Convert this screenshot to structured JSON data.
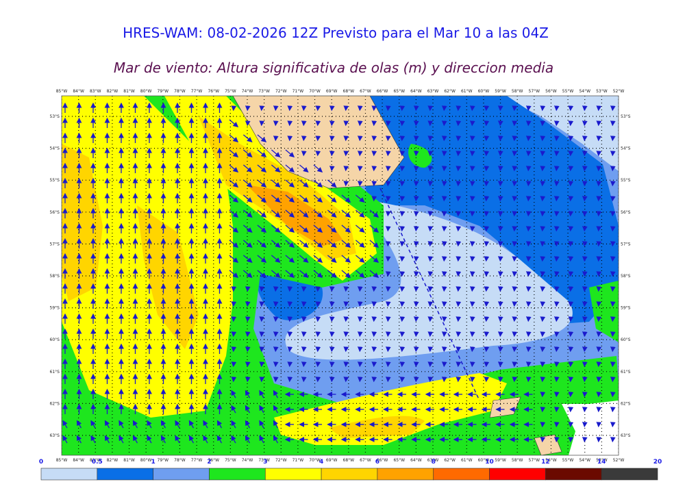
{
  "title": "HRES-WAM: 08-02-2026 12Z Previsto para el Mar 10 a las 04Z",
  "subtitle": "Mar de viento: Altura significativa de olas (m) y direccion media",
  "map": {
    "longitudes": [
      "85°W",
      "84°W",
      "83°W",
      "82°W",
      "81°W",
      "80°W",
      "79°W",
      "78°W",
      "77°W",
      "76°W",
      "75°W",
      "74°W",
      "73°W",
      "72°W",
      "71°W",
      "70°W",
      "69°W",
      "68°W",
      "67°W",
      "66°W",
      "65°W",
      "64°W",
      "63°W",
      "62°W",
      "61°W",
      "60°W",
      "59°W",
      "58°W",
      "57°W",
      "56°W",
      "55°W",
      "54°W",
      "53°W",
      "52°W"
    ],
    "latitudes": [
      "53°S",
      "54°S",
      "55°S",
      "56°S",
      "57°S",
      "58°S",
      "59°S",
      "60°S",
      "61°S",
      "62°S",
      "63°S"
    ]
  },
  "colorbar": {
    "ticks": [
      0,
      0.5,
      1,
      2,
      3,
      4,
      6,
      8,
      10,
      12,
      14,
      20
    ],
    "colors": [
      "#c6dcf6",
      "#0a6fe6",
      "#6f9ef0",
      "#1ee61e",
      "#ffff00",
      "#ffd500",
      "#ffa200",
      "#ff6a00",
      "#ff0000",
      "#6b0a00",
      "#3a3a3a"
    ]
  }
}
